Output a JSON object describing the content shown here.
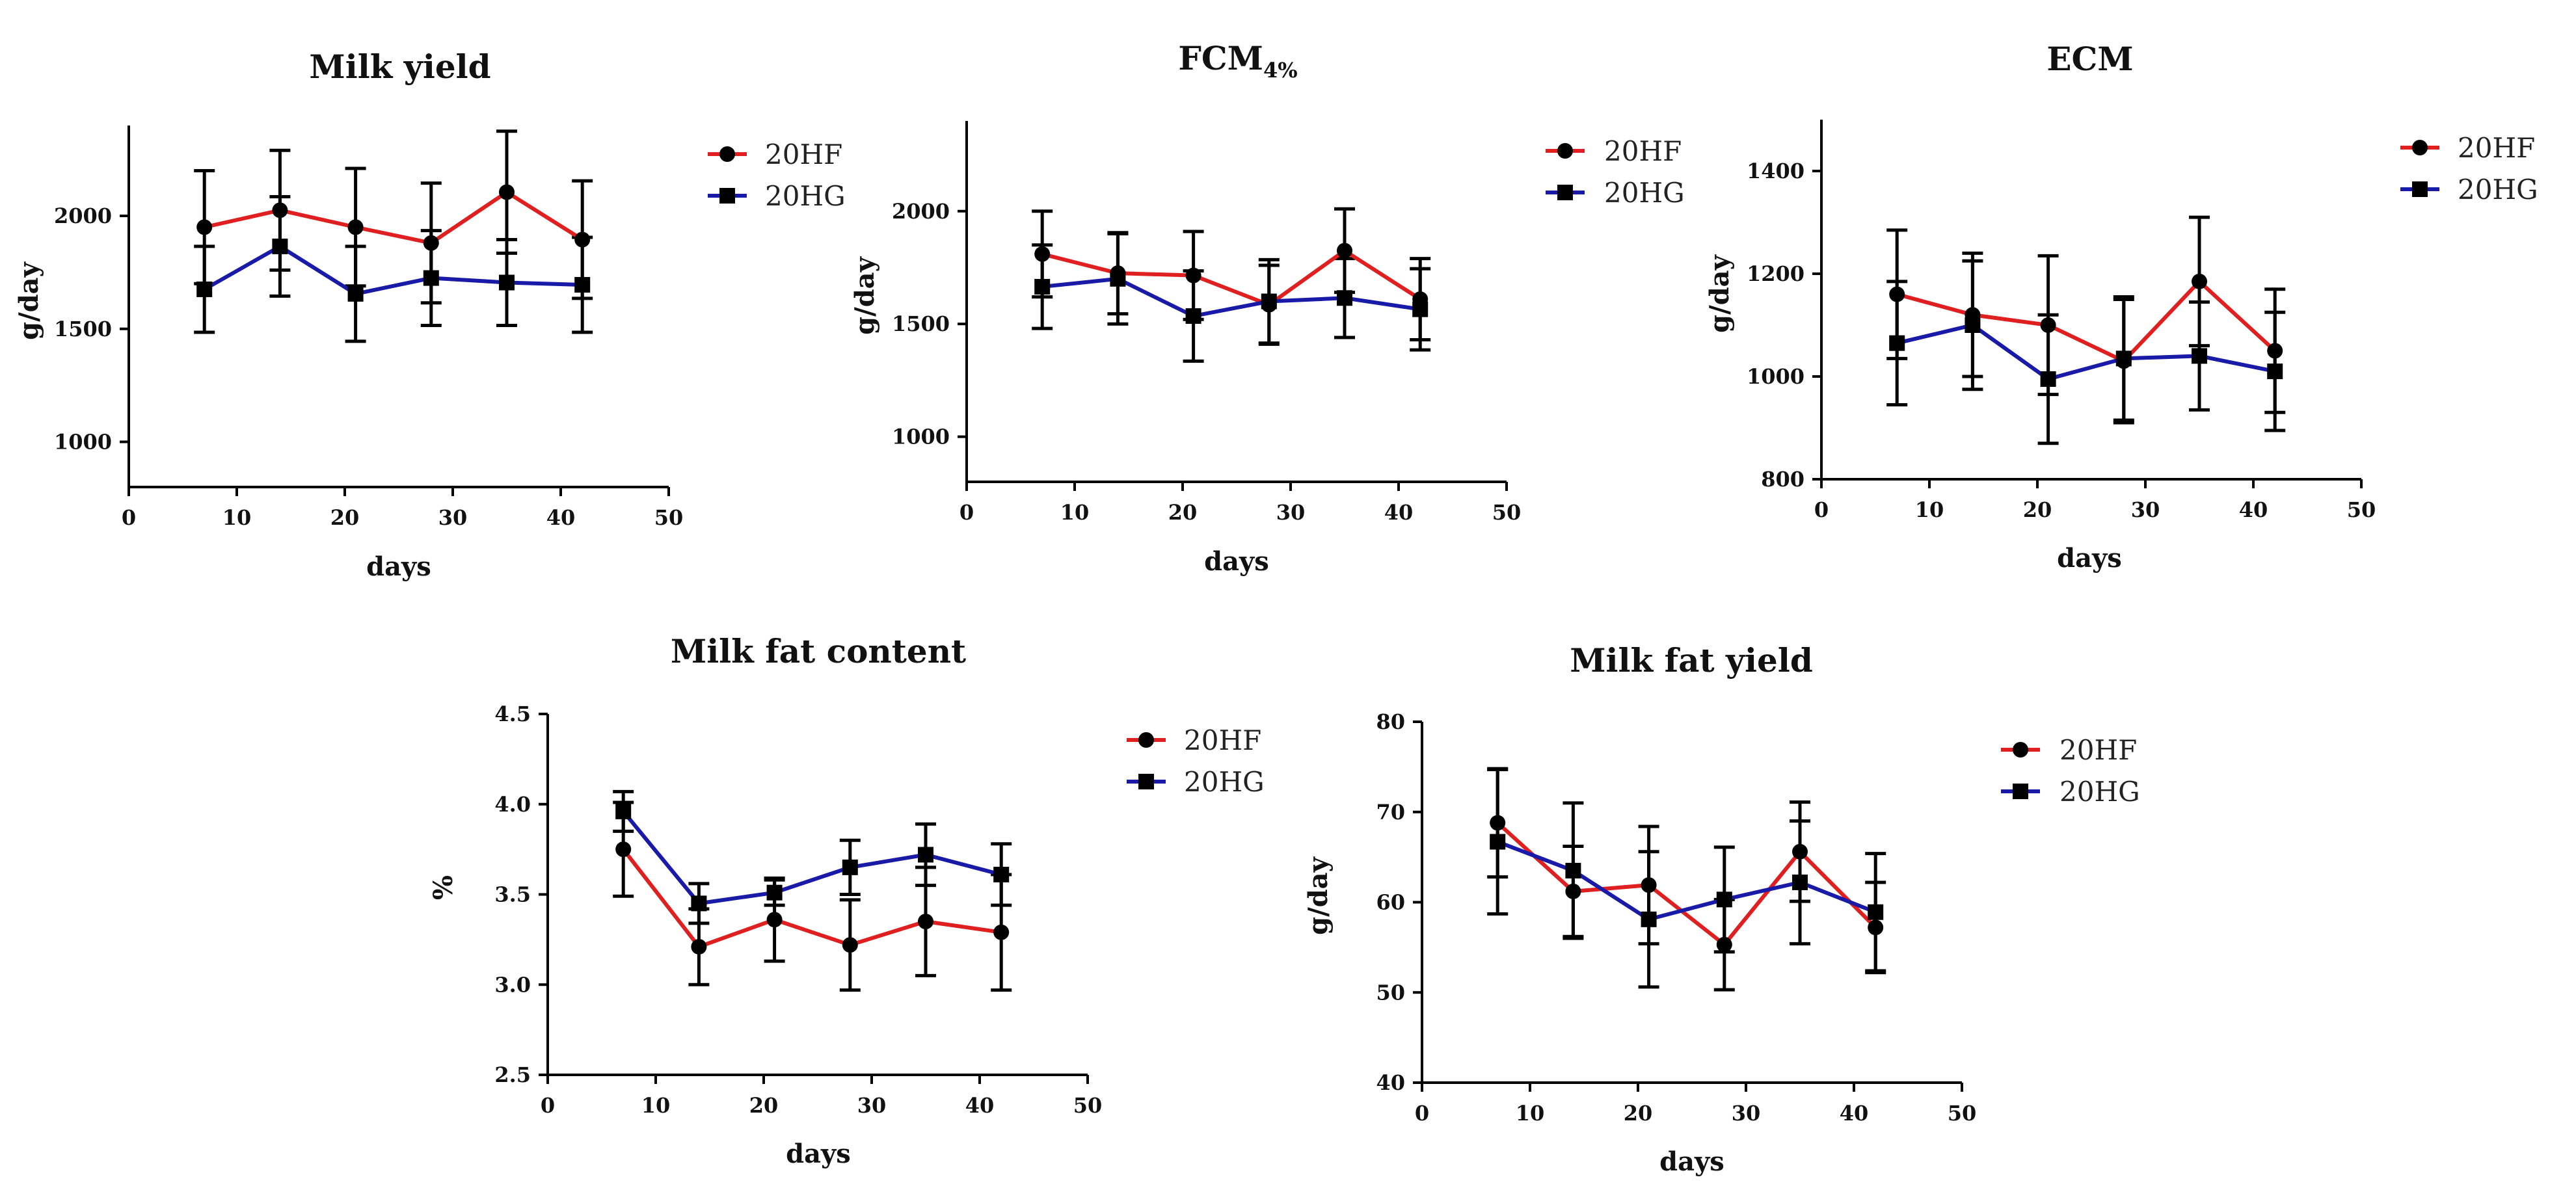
{
  "chart_data": [
    {
      "type": "line",
      "title": "Milk yield",
      "title_sub": "",
      "xlabel": "days",
      "ylabel": "g/day",
      "xlim": [
        0,
        50
      ],
      "ylim": [
        800,
        2400
      ],
      "xticks": [
        0,
        10,
        20,
        30,
        40,
        50
      ],
      "yticks": [
        1000,
        1500,
        2000
      ],
      "x": [
        7,
        14,
        21,
        28,
        35,
        42
      ],
      "series": [
        {
          "name": "20HF",
          "color": "#e02020",
          "marker": "circle",
          "values": [
            1950,
            2025,
            1950,
            1880,
            2105,
            1895
          ],
          "errors": [
            250,
            265,
            260,
            265,
            270,
            260
          ]
        },
        {
          "name": "20HG",
          "color": "#1a1aa8",
          "marker": "square",
          "values": [
            1675,
            1865,
            1655,
            1725,
            1705,
            1695
          ],
          "errors": [
            190,
            220,
            210,
            210,
            190,
            210
          ]
        }
      ]
    },
    {
      "type": "line",
      "title": "FCM",
      "title_sub": "4%",
      "xlabel": "days",
      "ylabel": "g/day",
      "xlim": [
        0,
        50
      ],
      "ylim": [
        800,
        2400
      ],
      "xticks": [
        0,
        10,
        20,
        30,
        40,
        50
      ],
      "yticks": [
        1000,
        1500,
        2000
      ],
      "x": [
        7,
        14,
        21,
        28,
        35,
        42
      ],
      "series": [
        {
          "name": "20HF",
          "color": "#e02020",
          "marker": "circle",
          "values": [
            1810,
            1725,
            1715,
            1585,
            1825,
            1610
          ],
          "errors": [
            190,
            180,
            195,
            175,
            185,
            180
          ]
        },
        {
          "name": "20HG",
          "color": "#1a1aa8",
          "marker": "square",
          "values": [
            1665,
            1700,
            1535,
            1600,
            1615,
            1565
          ],
          "errors": [
            185,
            200,
            200,
            185,
            175,
            180
          ]
        }
      ]
    },
    {
      "type": "line",
      "title": "ECM",
      "title_sub": "",
      "xlabel": "days",
      "ylabel": "g/day",
      "xlim": [
        0,
        50
      ],
      "ylim": [
        800,
        1500
      ],
      "xticks": [
        0,
        10,
        20,
        30,
        40,
        50
      ],
      "yticks": [
        800,
        1000,
        1200,
        1400
      ],
      "x": [
        7,
        14,
        21,
        28,
        35,
        42
      ],
      "series": [
        {
          "name": "20HF",
          "color": "#e02020",
          "marker": "circle",
          "values": [
            1160,
            1120,
            1100,
            1030,
            1185,
            1050
          ],
          "errors": [
            125,
            120,
            135,
            120,
            125,
            120
          ]
        },
        {
          "name": "20HG",
          "color": "#1a1aa8",
          "marker": "square",
          "values": [
            1065,
            1100,
            995,
            1035,
            1040,
            1010
          ],
          "errors": [
            120,
            125,
            125,
            120,
            105,
            115
          ]
        }
      ]
    },
    {
      "type": "line",
      "title": "Milk fat content",
      "title_sub": "",
      "xlabel": "days",
      "ylabel": "%",
      "xlim": [
        0,
        50
      ],
      "ylim": [
        2.5,
        4.5
      ],
      "xticks": [
        0,
        10,
        20,
        30,
        40,
        50
      ],
      "yticks": [
        2.5,
        3.0,
        3.5,
        4.0,
        4.5
      ],
      "ytick_decimals": 1,
      "x": [
        7,
        14,
        21,
        28,
        35,
        42
      ],
      "series": [
        {
          "name": "20HF",
          "color": "#e02020",
          "marker": "circle",
          "values": [
            3.75,
            3.21,
            3.36,
            3.22,
            3.35,
            3.29
          ],
          "errors": [
            0.26,
            0.21,
            0.23,
            0.25,
            0.3,
            0.32
          ]
        },
        {
          "name": "20HG",
          "color": "#1a1aa8",
          "marker": "square",
          "values": [
            3.96,
            3.45,
            3.51,
            3.65,
            3.72,
            3.61
          ],
          "errors": [
            0.11,
            0.11,
            0.07,
            0.15,
            0.17,
            0.17
          ]
        }
      ]
    },
    {
      "type": "line",
      "title": "Milk fat yield",
      "title_sub": "",
      "xlabel": "days",
      "ylabel": "g/day",
      "xlim": [
        0,
        50
      ],
      "ylim": [
        40,
        80
      ],
      "xticks": [
        0,
        10,
        20,
        30,
        40,
        50
      ],
      "yticks": [
        40,
        50,
        60,
        70,
        80
      ],
      "x": [
        7,
        14,
        21,
        28,
        35,
        42
      ],
      "series": [
        {
          "name": "20HF",
          "color": "#e02020",
          "marker": "circle",
          "values": [
            68.8,
            61.2,
            61.9,
            55.3,
            65.6,
            57.2
          ],
          "errors": [
            6.0,
            5.0,
            6.5,
            5.0,
            5.5,
            5.0
          ]
        },
        {
          "name": "20HG",
          "color": "#1a1aa8",
          "marker": "square",
          "values": [
            66.7,
            63.5,
            58.1,
            60.3,
            62.2,
            58.9
          ],
          "errors": [
            8.0,
            7.5,
            7.5,
            5.8,
            6.8,
            6.5
          ]
        }
      ]
    }
  ]
}
